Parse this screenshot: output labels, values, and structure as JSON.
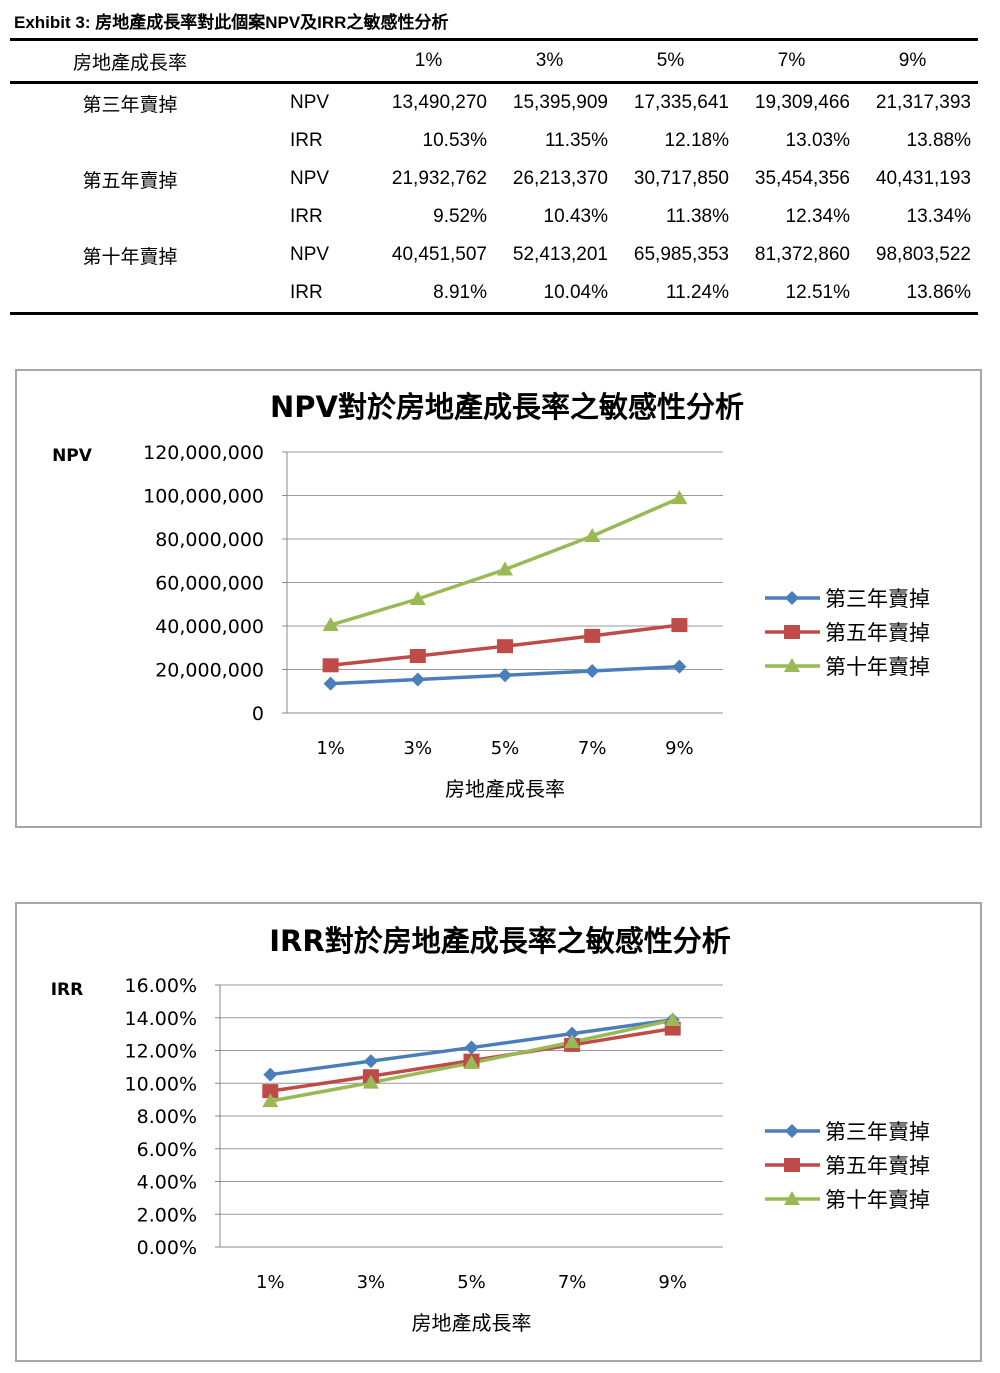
{
  "exhibit_title": "Exhibit 3:  房地產成長率對此個案NPV及IRR之敏感性分析",
  "table": {
    "header": [
      "房地產成長率",
      "",
      "1%",
      "3%",
      "5%",
      "7%",
      "9%"
    ],
    "rows": [
      {
        "group": "第三年賣掉",
        "metric": "NPV",
        "values": [
          "13,490,270",
          "15,395,909",
          "17,335,641",
          "19,309,466",
          "21,317,393"
        ]
      },
      {
        "group": "",
        "metric": "IRR",
        "values": [
          "10.53%",
          "11.35%",
          "12.18%",
          "13.03%",
          "13.88%"
        ]
      },
      {
        "group": "第五年賣掉",
        "metric": "NPV",
        "values": [
          "21,932,762",
          "26,213,370",
          "30,717,850",
          "35,454,356",
          "40,431,193"
        ]
      },
      {
        "group": "",
        "metric": "IRR",
        "values": [
          "9.52%",
          "10.43%",
          "11.38%",
          "12.34%",
          "13.34%"
        ]
      },
      {
        "group": "第十年賣掉",
        "metric": "NPV",
        "values": [
          "40,451,507",
          "52,413,201",
          "65,985,353",
          "81,372,860",
          "98,803,522"
        ]
      },
      {
        "group": "",
        "metric": "IRR",
        "values": [
          "8.91%",
          "10.04%",
          "11.24%",
          "12.51%",
          "13.86%"
        ]
      }
    ]
  },
  "chart_data": [
    {
      "type": "line",
      "title": "NPV對於房地產成長率之敏感性分析",
      "ylabel": "NPV",
      "xlabel": "房地產成長率",
      "categories": [
        "1%",
        "3%",
        "5%",
        "7%",
        "9%"
      ],
      "ylim": [
        0,
        120000000
      ],
      "yticks": [
        "0",
        "20,000,000",
        "40,000,000",
        "60,000,000",
        "80,000,000",
        "100,000,000",
        "120,000,000"
      ],
      "grid": true,
      "legend": "right",
      "series": [
        {
          "name": "第三年賣掉",
          "color": "#4a7ebb",
          "marker": "diamond",
          "values": [
            13490270,
            15395909,
            17335641,
            19309466,
            21317393
          ]
        },
        {
          "name": "第五年賣掉",
          "color": "#be4b48",
          "marker": "square",
          "values": [
            21932762,
            26213370,
            30717850,
            35454356,
            40431193
          ]
        },
        {
          "name": "第十年賣掉",
          "color": "#98b954",
          "marker": "triangle",
          "values": [
            40451507,
            52413201,
            65985353,
            81372860,
            98803522
          ]
        }
      ]
    },
    {
      "type": "line",
      "title": "IRR對於房地產成長率之敏感性分析",
      "ylabel": "IRR",
      "xlabel": "房地產成長率",
      "categories": [
        "1%",
        "3%",
        "5%",
        "7%",
        "9%"
      ],
      "ylim": [
        0,
        16
      ],
      "yticks": [
        "0.00%",
        "2.00%",
        "4.00%",
        "6.00%",
        "8.00%",
        "10.00%",
        "12.00%",
        "14.00%",
        "16.00%"
      ],
      "grid": true,
      "legend": "right",
      "series": [
        {
          "name": "第三年賣掉",
          "color": "#4a7ebb",
          "marker": "diamond",
          "values": [
            10.53,
            11.35,
            12.18,
            13.03,
            13.88
          ]
        },
        {
          "name": "第五年賣掉",
          "color": "#be4b48",
          "marker": "square",
          "values": [
            9.52,
            10.43,
            11.38,
            12.34,
            13.34
          ]
        },
        {
          "name": "第十年賣掉",
          "color": "#98b954",
          "marker": "triangle",
          "values": [
            8.91,
            10.04,
            11.24,
            12.51,
            13.86
          ]
        }
      ]
    }
  ]
}
